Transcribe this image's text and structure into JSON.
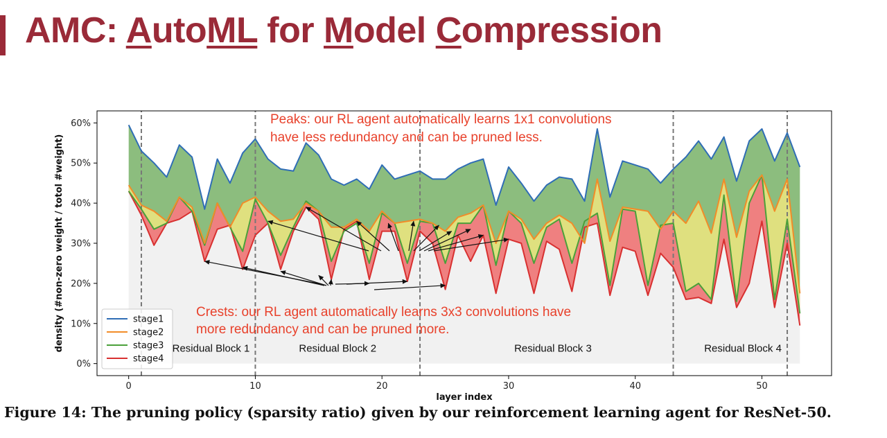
{
  "slide": {
    "title_parts": [
      "AMC: ",
      "A",
      "uto",
      "ML",
      " for ",
      "M",
      "odel ",
      "C",
      "ompression"
    ],
    "accent_color": "#9a2a38"
  },
  "caption": "Figure 14: The pruning policy (sparsity ratio) given by our reinforcement learning agent for ResNet-50.",
  "chart_data": {
    "type": "area",
    "xlabel": "layer index",
    "ylabel": "density (#non-zero weight / totol #weight)",
    "xlim": [
      -2.5,
      55.5
    ],
    "ylim": [
      -3,
      63
    ],
    "xticks": [
      0,
      10,
      20,
      30,
      40,
      50
    ],
    "yticks": [
      0,
      10,
      20,
      30,
      40,
      50,
      60
    ],
    "ytick_labels": [
      "0%",
      "10%",
      "20%",
      "30%",
      "40%",
      "50%",
      "60%"
    ],
    "grid": false,
    "legend_position": "lower-left",
    "colors": {
      "stage1_line": "#2f6db5",
      "stage2_line": "#f28c28",
      "stage3_line": "#4aa03a",
      "stage4_line": "#d83030",
      "fill_stage1": "#8cbd7e",
      "fill_stage2": "#dfe07f",
      "fill_stage4": "#ef8080",
      "fill_base": "#f1f1f1",
      "annotation": "#e8412b"
    },
    "x": [
      0,
      1,
      2,
      3,
      4,
      5,
      6,
      7,
      8,
      9,
      10,
      11,
      12,
      13,
      14,
      15,
      16,
      17,
      18,
      19,
      20,
      21,
      22,
      23,
      24,
      25,
      26,
      27,
      28,
      29,
      30,
      31,
      32,
      33,
      34,
      35,
      36,
      37,
      38,
      39,
      40,
      41,
      42,
      43,
      44,
      45,
      46,
      47,
      48,
      49,
      50,
      51,
      52,
      53
    ],
    "series": [
      {
        "name": "stage1",
        "values": [
          59.5,
          53,
          50,
          46.5,
          54.5,
          51.5,
          38.5,
          51,
          45,
          52.5,
          56,
          51,
          48.5,
          48,
          55,
          52,
          46,
          44.5,
          46,
          43.5,
          49.5,
          46,
          47,
          48,
          46,
          46,
          48.5,
          50,
          51,
          39.5,
          49,
          45,
          40.5,
          44.5,
          46.5,
          46,
          40.5,
          58.5,
          41.5,
          50.5,
          49.5,
          48.5,
          45,
          48.5,
          51.5,
          55.5,
          51,
          56.5,
          45.5,
          55.5,
          58.5,
          50.5,
          57.5,
          49
        ]
      },
      {
        "name": "stage2",
        "values": [
          44.5,
          39.5,
          38,
          35.5,
          41.5,
          39,
          30,
          40,
          34,
          40,
          41.5,
          38,
          35.5,
          36,
          40,
          38,
          34,
          34,
          36,
          33,
          38,
          35,
          35.5,
          36,
          35,
          33,
          36.5,
          37.5,
          39.5,
          30,
          38,
          36,
          31,
          35,
          37,
          35,
          30,
          46,
          30.5,
          39,
          38.5,
          38,
          33.5,
          38,
          35,
          40.5,
          32.5,
          46,
          31.5,
          43,
          47,
          38,
          46,
          17.5
        ]
      },
      {
        "name": "stage3",
        "values": [
          43,
          38.5,
          33.5,
          35,
          41.5,
          38,
          29.5,
          40,
          34,
          28,
          41,
          35,
          27,
          34,
          40.5,
          38,
          25.5,
          33,
          35,
          25,
          37.5,
          35,
          25,
          35.5,
          35,
          25,
          35,
          35,
          39.5,
          24.5,
          38,
          35,
          25,
          34,
          36,
          25,
          35.5,
          37.5,
          19.5,
          38.5,
          38,
          19.5,
          34.5,
          35,
          18,
          20,
          16,
          42,
          15.5,
          40,
          47,
          16,
          36,
          12.5
        ]
      },
      {
        "name": "stage4",
        "values": [
          43,
          37,
          29.5,
          35,
          36,
          38,
          25.5,
          33.5,
          34.5,
          23.5,
          32,
          35,
          23.5,
          33,
          39,
          36,
          21,
          33.5,
          35.5,
          21,
          33,
          33,
          20.5,
          33,
          30,
          18.5,
          32,
          25.5,
          32,
          17.5,
          31,
          30,
          17.5,
          30.5,
          28.5,
          18,
          34,
          35,
          17,
          29,
          28,
          17,
          27.5,
          24,
          16,
          16.5,
          15,
          31,
          14,
          20,
          35.5,
          14,
          30,
          9.5
        ]
      }
    ],
    "dividers_x": [
      1,
      10,
      23,
      43,
      52
    ],
    "blocks": [
      {
        "label": "Residual Block 1",
        "x": 6.5
      },
      {
        "label": "Residual Block 2",
        "x": 16.5
      },
      {
        "label": "Residual Block 3",
        "x": 33.5
      },
      {
        "label": "Residual Block 4",
        "x": 48.5
      }
    ],
    "annotations": [
      {
        "lines": [
          "Peaks: our RL agent automatically learns 1x1 convolutions",
          "have less redundancy and can be pruned less."
        ],
        "targets": [
          [
            11,
            35.5
          ],
          [
            14,
            39
          ],
          [
            18,
            35.5
          ],
          [
            20.5,
            35
          ],
          [
            22.5,
            35.5
          ],
          [
            24.5,
            34.5
          ],
          [
            25.5,
            33
          ],
          [
            27,
            33.5
          ],
          [
            28,
            32
          ],
          [
            30,
            31
          ]
        ]
      },
      {
        "lines": [
          "Crests: our RL agent automatically learns 3x3 convolutions have",
          "more redundancy and can be pruned more."
        ],
        "targets": [
          [
            6,
            25.5
          ],
          [
            9,
            24
          ],
          [
            12,
            23
          ],
          [
            15,
            22
          ],
          [
            16,
            21
          ],
          [
            19,
            20
          ],
          [
            22,
            20.5
          ],
          [
            25,
            19.5
          ]
        ]
      }
    ]
  }
}
